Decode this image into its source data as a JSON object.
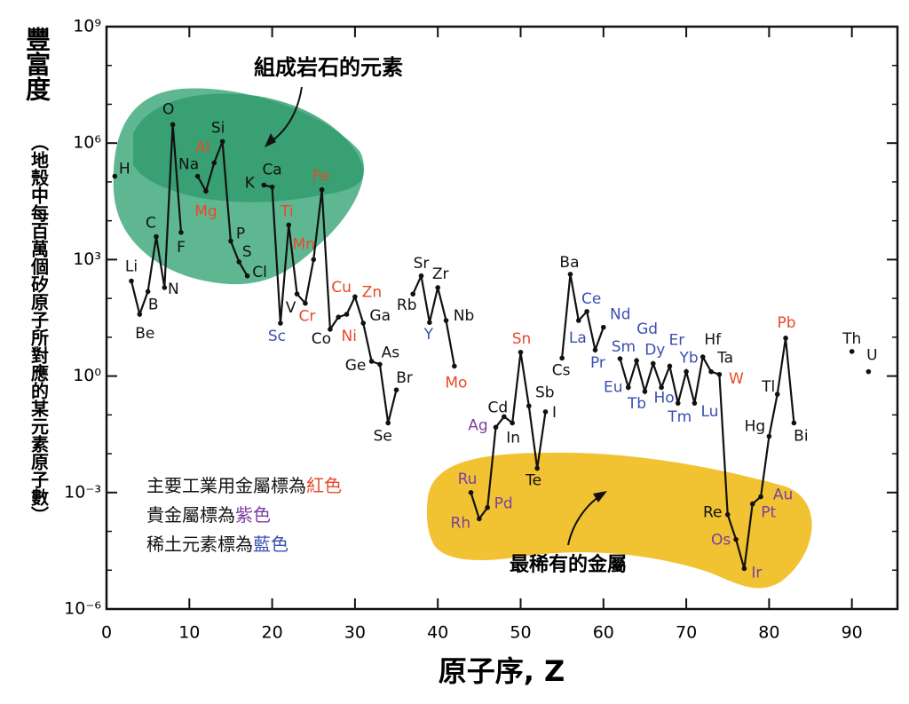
{
  "chart_data": {
    "type": "line",
    "ylabel": "豐富度",
    "ysublabel": "（地殼中每百萬個矽原子所對應的某元素原子數）",
    "xlabel": "原子序, Z",
    "log_y": true,
    "xlim": [
      0,
      95.5
    ],
    "ylim": [
      1e-06,
      1000000000.0
    ],
    "xticks": [
      0,
      10,
      20,
      30,
      40,
      50,
      60,
      70,
      80,
      90
    ],
    "yticks": [
      {
        "value": 1e-06,
        "label": "10⁻⁶"
      },
      {
        "value": 0.001,
        "label": "10⁻³"
      },
      {
        "value": 1,
        "label": "10⁰"
      },
      {
        "value": 1000,
        "label": "10³"
      },
      {
        "value": 1000000,
        "label": "10⁶"
      },
      {
        "value": 1000000000,
        "label": "10⁹"
      }
    ],
    "yminorticks": [
      1e-05,
      0.0001,
      0.01,
      0.1,
      10,
      100,
      10000,
      100000,
      10000000,
      100000000
    ],
    "color": "#111111",
    "x": [
      1,
      2,
      3,
      4,
      5,
      6,
      7,
      8,
      9,
      10,
      11,
      12,
      13,
      14,
      15,
      16,
      17,
      18,
      19,
      20,
      21,
      22,
      23,
      24,
      25,
      26,
      27,
      28,
      29,
      30,
      31,
      32,
      33,
      34,
      35,
      36,
      37,
      38,
      39,
      40,
      41,
      42,
      43,
      44,
      45,
      46,
      47,
      48,
      49,
      50,
      51,
      52,
      53,
      54,
      55,
      56,
      57,
      58,
      59,
      60,
      61,
      62,
      63,
      64,
      65,
      66,
      67,
      68,
      69,
      70,
      71,
      72,
      73,
      74,
      75,
      76,
      77,
      78,
      79,
      80,
      81,
      82,
      83,
      84,
      85,
      86,
      87,
      88,
      89,
      90,
      91,
      92
    ],
    "values": [
      140000,
      null,
      280,
      39,
      150,
      3900,
      190,
      3000000,
      5000,
      null,
      140000,
      58000,
      310000,
      1100000,
      3000,
      870,
      380,
      null,
      83000,
      74000,
      23,
      7800,
      130,
      75,
      1000,
      63000,
      16,
      33,
      39,
      110,
      23,
      2.4,
      2,
      0.062,
      0.44,
      null,
      130,
      380,
      24,
      190,
      27,
      1.8,
      null,
      0.001,
      0.00021,
      0.00041,
      0.048,
      0.09,
      0.062,
      4.1,
      0.17,
      0.0042,
      0.12,
      null,
      2.9,
      420,
      27,
      46,
      4.7,
      18,
      null,
      2.8,
      0.51,
      2.5,
      0.4,
      2.1,
      0.51,
      1.8,
      0.2,
      1.3,
      0.2,
      3.1,
      1.3,
      1.1,
      0.00027,
      6.2e-05,
      1.1e-05,
      0.00051,
      0.00078,
      0.028,
      0.34,
      9.5,
      0.062,
      null,
      null,
      null,
      null,
      null,
      null,
      4.3,
      null,
      1.3
    ],
    "labels": [
      "H",
      null,
      "Li",
      "Be",
      "B",
      "C",
      "N",
      "O",
      "F",
      null,
      "Na",
      "Mg",
      "Al",
      "Si",
      "P",
      "S",
      "Cl",
      null,
      "K",
      "Ca",
      "Sc",
      "Ti",
      "V",
      "Cr",
      "Mn",
      "Fe",
      "Co",
      "Ni",
      "Cu",
      "Zn",
      "Ga",
      "Ge",
      "As",
      "Se",
      "Br",
      null,
      "Rb",
      "Sr",
      "Y",
      "Zr",
      "Nb",
      "Mo",
      null,
      "Ru",
      "Rh",
      "Pd",
      "Ag",
      "Cd",
      "In",
      "Sn",
      "Sb",
      "Te",
      "I",
      null,
      "Cs",
      "Ba",
      "La",
      "Ce",
      "Pr",
      "Nd",
      null,
      "Sm",
      "Eu",
      "Gd",
      "Tb",
      "Dy",
      "Ho",
      "Er",
      "Tm",
      "Yb",
      "Lu",
      "Hf",
      "Ta",
      "W",
      "Re",
      "Os",
      "Ir",
      "Pt",
      "Au",
      "Hg",
      "Tl",
      "Pb",
      "Bi",
      null,
      null,
      null,
      null,
      null,
      null,
      "Th",
      null,
      "U"
    ],
    "label_colors": [
      "#111111",
      null,
      "#111111",
      "#111111",
      "#111111",
      "#111111",
      "#111111",
      "#111111",
      "#111111",
      null,
      "#111111",
      "#e8492b",
      "#e8492b",
      "#111111",
      "#111111",
      "#111111",
      "#111111",
      null,
      "#111111",
      "#111111",
      "#3a4fb0",
      "#e8492b",
      "#111111",
      "#e8492b",
      "#e8492b",
      "#e8492b",
      "#111111",
      "#e8492b",
      "#e8492b",
      "#e8492b",
      "#111111",
      "#111111",
      "#111111",
      "#111111",
      "#111111",
      null,
      "#111111",
      "#111111",
      "#3a4fb0",
      "#111111",
      "#111111",
      "#e8492b",
      null,
      "#7b3fa0",
      "#7b3fa0",
      "#7b3fa0",
      "#7b3fa0",
      "#111111",
      "#111111",
      "#e8492b",
      "#111111",
      "#111111",
      "#111111",
      null,
      "#111111",
      "#111111",
      "#3a4fb0",
      "#3a4fb0",
      "#3a4fb0",
      "#3a4fb0",
      null,
      "#3a4fb0",
      "#3a4fb0",
      "#3a4fb0",
      "#3a4fb0",
      "#3a4fb0",
      "#3a4fb0",
      "#3a4fb0",
      "#3a4fb0",
      "#3a4fb0",
      "#3a4fb0",
      "#111111",
      "#111111",
      "#e8492b",
      "#111111",
      "#7b3fa0",
      "#7b3fa0",
      "#7b3fa0",
      "#7b3fa0",
      "#111111",
      "#111111",
      "#e8492b",
      "#111111",
      null,
      null,
      null,
      null,
      null,
      null,
      "#111111",
      null,
      "#111111"
    ],
    "legend": [
      {
        "text": "主要工業用金屬標為",
        "highlight": "紅色",
        "color": "#e8492b"
      },
      {
        "text": "貴金屬標為",
        "highlight": "紫色",
        "color": "#7b3fa0"
      },
      {
        "text": "稀土元素標為",
        "highlight": "藍色",
        "color": "#3a4fb0"
      }
    ],
    "annotations": [
      "組成岩石的元素",
      "最稀有的金屬"
    ]
  }
}
